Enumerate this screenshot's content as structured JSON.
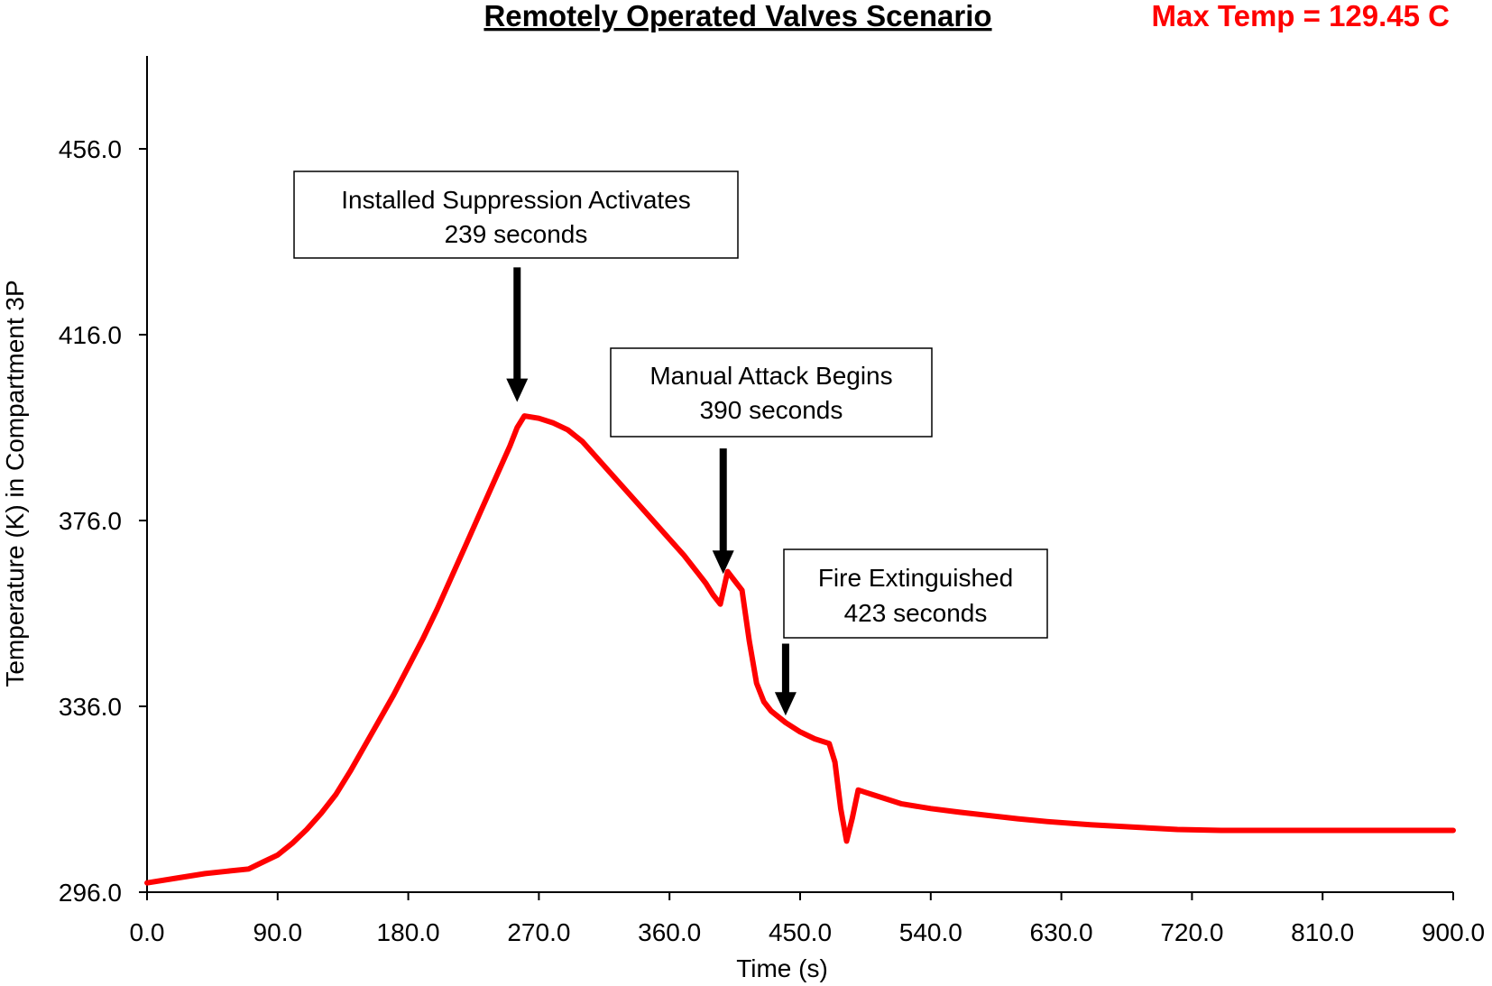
{
  "chart_data": {
    "type": "line",
    "title": "Remotely Operated Valves Scenario",
    "max_temp_label": "Max Temp = 129.45 C",
    "xlabel": "Time (s)",
    "ylabel": "Temperature (K) in Compartment 3P",
    "xlim": [
      0,
      900
    ],
    "ylim": [
      296,
      476
    ],
    "x_ticks": [
      "0.0",
      "90.0",
      "180.0",
      "270.0",
      "360.0",
      "450.0",
      "540.0",
      "630.0",
      "720.0",
      "810.0",
      "900.0"
    ],
    "y_ticks": [
      "296.0",
      "336.0",
      "376.0",
      "416.0",
      "456.0"
    ],
    "grid": false,
    "series": [
      {
        "color": "#ff0000",
        "x": [
          0,
          20,
          40,
          55,
          70,
          80,
          90,
          100,
          110,
          120,
          130,
          140,
          150,
          160,
          170,
          180,
          190,
          200,
          210,
          220,
          230,
          240,
          250,
          255,
          260,
          270,
          280,
          290,
          300,
          320,
          340,
          360,
          370,
          375,
          380,
          385,
          390,
          395,
          400,
          405,
          410,
          415,
          420,
          425,
          430,
          440,
          450,
          460,
          470,
          474,
          478,
          482,
          486,
          490,
          495,
          500,
          510,
          520,
          540,
          560,
          580,
          600,
          620,
          650,
          680,
          710,
          740,
          780,
          820,
          860,
          900
        ],
        "y": [
          298.0,
          299.0,
          300.0,
          300.5,
          301.0,
          302.5,
          304.0,
          306.5,
          309.5,
          313.0,
          317.0,
          322.0,
          327.5,
          333.0,
          338.5,
          344.5,
          350.5,
          357.0,
          364.0,
          371.0,
          378.0,
          385.0,
          392.0,
          396.0,
          398.5,
          398.0,
          397.0,
          395.5,
          393.0,
          386.0,
          379.0,
          372.0,
          368.5,
          366.5,
          364.5,
          362.5,
          360.0,
          358.0,
          365.0,
          363.0,
          361.0,
          350.0,
          341.0,
          337.0,
          335.0,
          332.5,
          330.5,
          329.0,
          328.0,
          324.0,
          314.0,
          307.0,
          312.0,
          318.0,
          317.5,
          317.0,
          316.0,
          315.0,
          314.0,
          313.2,
          312.5,
          311.8,
          311.2,
          310.5,
          310.0,
          309.5,
          309.3,
          309.3,
          309.3,
          309.3,
          309.3
        ]
      }
    ],
    "annotations": [
      {
        "lines": [
          "Installed Suppression Activates",
          "239 seconds"
        ],
        "arrow_x": 255,
        "arrow_tip_y": 401.5,
        "arrow_tail_y": 430.5
      },
      {
        "lines": [
          "Manual Attack Begins",
          "390 seconds"
        ],
        "arrow_x": 397,
        "arrow_tip_y": 364.5,
        "arrow_tail_y": 391.5
      },
      {
        "lines": [
          "Fire Extinguished",
          "423 seconds"
        ],
        "arrow_x": 440,
        "arrow_tip_y": 334.0,
        "arrow_tail_y": 349.5
      }
    ]
  }
}
